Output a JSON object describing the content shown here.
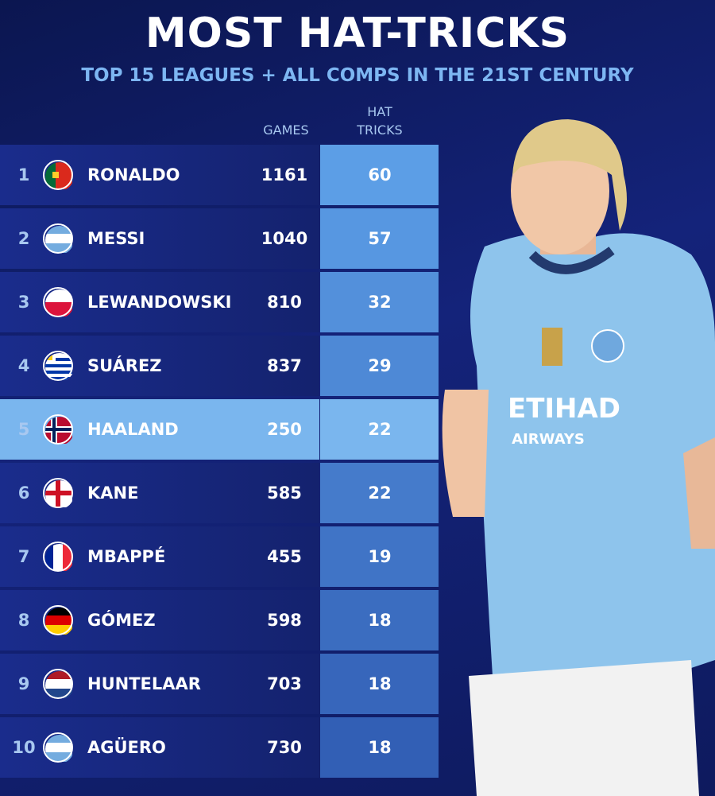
{
  "header": {
    "title": "MOST HAT-TRICKS",
    "subtitle": "TOP 15 LEAGUES + ALL COMPS IN THE 21ST CENTURY"
  },
  "table": {
    "columns": [
      "GAMES",
      "HAT TRICKS"
    ],
    "rows": [
      [
        1,
        "RONALDO",
        1161,
        60
      ],
      [
        2,
        "MESSI",
        1040,
        57
      ],
      [
        3,
        "LEWANDOWSKI",
        810,
        32
      ],
      [
        4,
        "SUÁREZ",
        837,
        29
      ],
      [
        5,
        "HAALAND",
        250,
        22
      ],
      [
        6,
        "KANE",
        585,
        22
      ],
      [
        7,
        "MBAPPÉ",
        455,
        19
      ],
      [
        8,
        "GÓMEZ",
        598,
        18
      ],
      [
        9,
        "HUNTELAAR",
        703,
        18
      ],
      [
        10,
        "AGÜERO",
        730,
        18
      ]
    ]
  }
}
